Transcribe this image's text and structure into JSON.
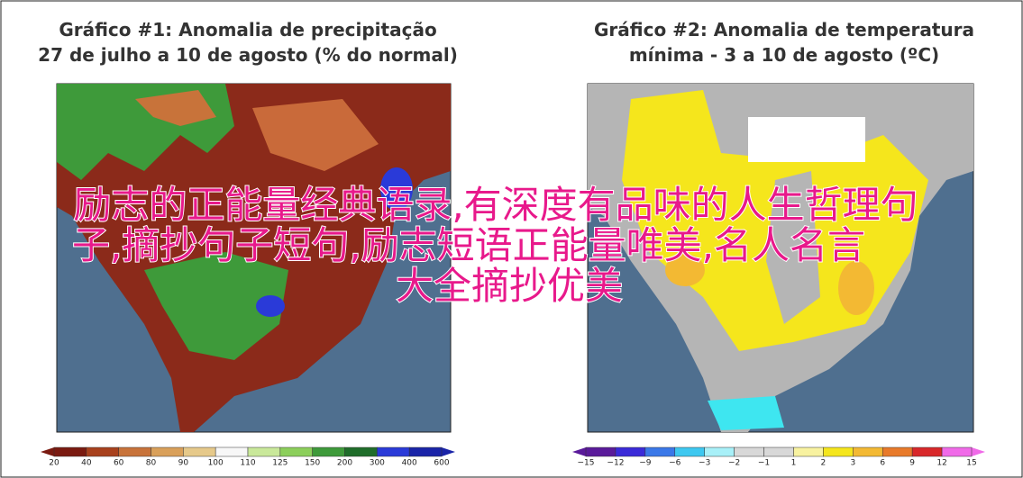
{
  "panels": [
    {
      "title_lines": [
        "Gráfico #1: Anomalia de precipitação",
        "27 de julho a 10 de agosto (% do normal)"
      ],
      "colorbar_labels": [
        "20",
        "40",
        "60",
        "80",
        "90",
        "100",
        "110",
        "125",
        "150",
        "200",
        "300",
        "400",
        "600"
      ]
    },
    {
      "title_lines": [
        "Gráfico #2: Anomalia de temperatura",
        "mínima - 3 a 10 de agosto (ºC)"
      ],
      "colorbar_labels": [
        "−15",
        "−12",
        "−9",
        "−6",
        "−3",
        "−2",
        "−1",
        "1",
        "2",
        "3",
        "6",
        "9",
        "12",
        "15"
      ]
    }
  ],
  "overlay": {
    "lines": [
      "励志的正能量经典语录,有深度有品味的人生哲理句",
      "子,摘抄句子短句,励志短语正能量唯美,名人名言",
      "大全摘抄优美"
    ]
  }
}
